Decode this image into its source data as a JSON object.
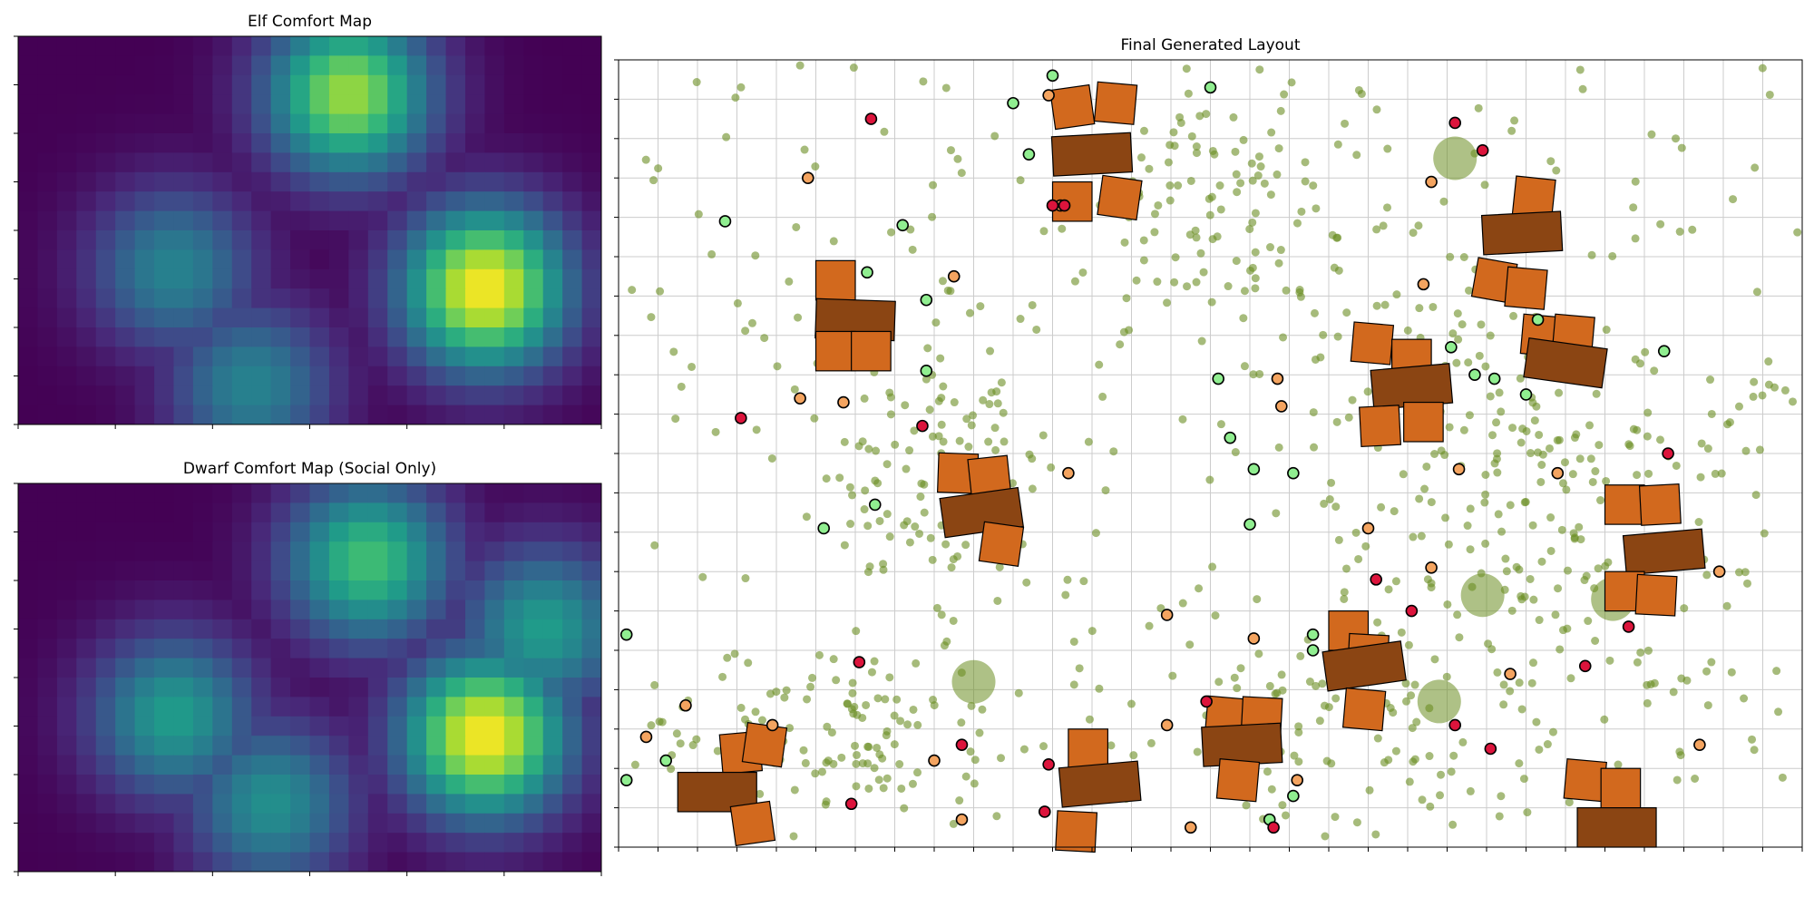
{
  "figure": {
    "background": "#ffffff",
    "titles": {
      "elf": "Elf Comfort Map",
      "dwarf": "Dwarf Comfort Map (Social Only)",
      "layout": "Final Generated Layout"
    }
  },
  "colors": {
    "building": "#d2691e",
    "hall": "#8b4513",
    "tree": "#6b8e23",
    "green_agent": "#90ee90",
    "orange_agent": "#f4a460",
    "red_agent": "#dc143c",
    "grid": "#cccccc"
  },
  "chart_data": [
    {
      "type": "heatmap",
      "title": "Elf Comfort Map",
      "colormap": "viridis",
      "rows": 20,
      "cols": 30,
      "grid_on": false,
      "hotspots": [
        {
          "col": 16.5,
          "row": 2.5,
          "value": 0.85
        },
        {
          "col": 23.5,
          "row": 12.5,
          "value": 1.0
        },
        {
          "col": 7.5,
          "row": 11.5,
          "value": 0.45
        },
        {
          "col": 11.5,
          "row": 17.5,
          "value": 0.45
        }
      ]
    },
    {
      "type": "heatmap",
      "title": "Dwarf Comfort Map (Social Only)",
      "colormap": "viridis",
      "rows": 20,
      "cols": 30,
      "grid_on": false,
      "hotspots": [
        {
          "col": 17.5,
          "row": 3.5,
          "value": 0.7
        },
        {
          "col": 23.5,
          "row": 12.5,
          "value": 1.0
        },
        {
          "col": 7.5,
          "row": 11.5,
          "value": 0.55
        },
        {
          "col": 12.5,
          "row": 16.0,
          "value": 0.5
        },
        {
          "col": 26.5,
          "row": 7.0,
          "value": 0.55
        }
      ]
    },
    {
      "type": "scatter",
      "title": "Final Generated Layout",
      "grid_on": true,
      "xlim": [
        0,
        30
      ],
      "ylim": [
        0,
        20
      ],
      "trees_count": 900,
      "large_trees": [
        [
          9,
          4.2
        ],
        [
          21.2,
          17.5
        ],
        [
          21.9,
          6.4
        ],
        [
          25.2,
          6.3
        ],
        [
          20.8,
          3.7
        ]
      ],
      "buildings": [
        {
          "x": 11.5,
          "y": 18.8,
          "w": 1.0,
          "h": 1.0,
          "rot": -8
        },
        {
          "x": 12.6,
          "y": 18.9,
          "w": 1.0,
          "h": 1.0,
          "rot": 5
        },
        {
          "x": 12.0,
          "y": 17.6,
          "w": 2.0,
          "h": 1.0,
          "rot": -3,
          "hall": true
        },
        {
          "x": 11.5,
          "y": 16.4,
          "w": 1.0,
          "h": 1.0,
          "rot": 0
        },
        {
          "x": 12.7,
          "y": 16.5,
          "w": 1.0,
          "h": 1.0,
          "rot": 8
        },
        {
          "x": 23.2,
          "y": 16.5,
          "w": 1.0,
          "h": 1.0,
          "rot": 6
        },
        {
          "x": 22.9,
          "y": 15.6,
          "w": 2.0,
          "h": 1.0,
          "rot": -3,
          "hall": true
        },
        {
          "x": 22.2,
          "y": 14.4,
          "w": 1.0,
          "h": 1.0,
          "rot": 10
        },
        {
          "x": 23.0,
          "y": 14.2,
          "w": 1.0,
          "h": 1.0,
          "rot": 5
        },
        {
          "x": 23.4,
          "y": 13.0,
          "w": 1.0,
          "h": 1.0,
          "rot": 5
        },
        {
          "x": 24.2,
          "y": 13.0,
          "w": 1.0,
          "h": 1.0,
          "rot": 5
        },
        {
          "x": 24.0,
          "y": 12.3,
          "w": 2.0,
          "h": 1.0,
          "rot": 8,
          "hall": true
        },
        {
          "x": 5.5,
          "y": 14.4,
          "w": 1.0,
          "h": 1.0,
          "rot": 0
        },
        {
          "x": 6.0,
          "y": 13.4,
          "w": 2.0,
          "h": 1.0,
          "rot": 2,
          "hall": true
        },
        {
          "x": 5.5,
          "y": 12.6,
          "w": 1.0,
          "h": 1.0,
          "rot": 0
        },
        {
          "x": 6.4,
          "y": 12.6,
          "w": 1.0,
          "h": 1.0,
          "rot": 0
        },
        {
          "x": 19.1,
          "y": 12.8,
          "w": 1.0,
          "h": 1.0,
          "rot": 5
        },
        {
          "x": 20.1,
          "y": 12.4,
          "w": 1.0,
          "h": 1.0,
          "rot": 0
        },
        {
          "x": 20.1,
          "y": 11.7,
          "w": 2.0,
          "h": 1.0,
          "rot": -5,
          "hall": true
        },
        {
          "x": 19.3,
          "y": 10.7,
          "w": 1.0,
          "h": 1.0,
          "rot": -3
        },
        {
          "x": 20.4,
          "y": 10.8,
          "w": 1.0,
          "h": 1.0,
          "rot": 0
        },
        {
          "x": 8.6,
          "y": 9.5,
          "w": 1.0,
          "h": 1.0,
          "rot": 2
        },
        {
          "x": 9.4,
          "y": 9.4,
          "w": 1.0,
          "h": 1.0,
          "rot": -6
        },
        {
          "x": 9.2,
          "y": 8.5,
          "w": 2.0,
          "h": 1.0,
          "rot": -8,
          "hall": true
        },
        {
          "x": 9.7,
          "y": 7.7,
          "w": 1.0,
          "h": 1.0,
          "rot": 8
        },
        {
          "x": 25.5,
          "y": 8.7,
          "w": 1.0,
          "h": 1.0,
          "rot": 0
        },
        {
          "x": 26.4,
          "y": 8.7,
          "w": 1.0,
          "h": 1.0,
          "rot": -3
        },
        {
          "x": 26.5,
          "y": 7.5,
          "w": 2.0,
          "h": 1.0,
          "rot": -5,
          "hall": true
        },
        {
          "x": 25.5,
          "y": 6.5,
          "w": 1.0,
          "h": 1.0,
          "rot": 0
        },
        {
          "x": 26.3,
          "y": 6.4,
          "w": 1.0,
          "h": 1.0,
          "rot": 3
        },
        {
          "x": 18.5,
          "y": 5.5,
          "w": 1.0,
          "h": 1.0,
          "rot": 0
        },
        {
          "x": 19.0,
          "y": 4.9,
          "w": 1.0,
          "h": 1.0,
          "rot": 3
        },
        {
          "x": 18.9,
          "y": 4.6,
          "w": 2.0,
          "h": 1.0,
          "rot": -8,
          "hall": true
        },
        {
          "x": 18.9,
          "y": 3.5,
          "w": 1.0,
          "h": 1.0,
          "rot": 5
        },
        {
          "x": 15.4,
          "y": 3.3,
          "w": 1.0,
          "h": 1.0,
          "rot": 5
        },
        {
          "x": 16.3,
          "y": 3.3,
          "w": 1.0,
          "h": 1.0,
          "rot": 3
        },
        {
          "x": 15.8,
          "y": 2.6,
          "w": 2.0,
          "h": 1.0,
          "rot": -3,
          "hall": true
        },
        {
          "x": 15.7,
          "y": 1.7,
          "w": 1.0,
          "h": 1.0,
          "rot": 5
        },
        {
          "x": 3.1,
          "y": 2.4,
          "w": 1.0,
          "h": 1.0,
          "rot": -5
        },
        {
          "x": 3.7,
          "y": 2.6,
          "w": 1.0,
          "h": 1.0,
          "rot": 8
        },
        {
          "x": 2.5,
          "y": 1.4,
          "w": 2.0,
          "h": 1.0,
          "rot": 0,
          "hall": true
        },
        {
          "x": 3.4,
          "y": 0.6,
          "w": 1.0,
          "h": 1.0,
          "rot": -8
        },
        {
          "x": 11.9,
          "y": 2.5,
          "w": 1.0,
          "h": 1.0,
          "rot": 0
        },
        {
          "x": 12.2,
          "y": 1.6,
          "w": 2.0,
          "h": 1.0,
          "rot": -5,
          "hall": true
        },
        {
          "x": 11.6,
          "y": 0.4,
          "w": 1.0,
          "h": 1.0,
          "rot": 3
        },
        {
          "x": 24.5,
          "y": 1.7,
          "w": 1.0,
          "h": 1.0,
          "rot": 5
        },
        {
          "x": 25.4,
          "y": 1.5,
          "w": 1.0,
          "h": 1.0,
          "rot": 0
        },
        {
          "x": 25.3,
          "y": 0.5,
          "w": 2.0,
          "h": 1.0,
          "rot": 0,
          "hall": true
        }
      ],
      "agents_green": [
        [
          11,
          19.6
        ],
        [
          15,
          19.3
        ],
        [
          10,
          18.9
        ],
        [
          10.4,
          17.6
        ],
        [
          2.7,
          15.9
        ],
        [
          7.2,
          15.8
        ],
        [
          6.3,
          14.6
        ],
        [
          7.8,
          13.9
        ],
        [
          7.8,
          12.1
        ],
        [
          21.1,
          12.7
        ],
        [
          21.7,
          12.0
        ],
        [
          23.3,
          13.4
        ],
        [
          26.5,
          12.6
        ],
        [
          15.2,
          11.9
        ],
        [
          23.0,
          11.5
        ],
        [
          22.2,
          11.9
        ],
        [
          15.5,
          10.4
        ],
        [
          16.1,
          9.6
        ],
        [
          17.1,
          9.5
        ],
        [
          6.5,
          8.7
        ],
        [
          5.2,
          8.1
        ],
        [
          16,
          8.2
        ],
        [
          0.2,
          5.4
        ],
        [
          17.6,
          5.4
        ],
        [
          17.6,
          5.0
        ],
        [
          1.2,
          2.2
        ],
        [
          0.2,
          1.7
        ],
        [
          17.1,
          1.3
        ],
        [
          16.5,
          0.7
        ]
      ],
      "agents_orange": [
        [
          10.9,
          19.1
        ],
        [
          4.8,
          17.0
        ],
        [
          11.2,
          16.3
        ],
        [
          20.6,
          16.9
        ],
        [
          8.5,
          14.5
        ],
        [
          20.4,
          14.3
        ],
        [
          16.7,
          11.9
        ],
        [
          4.6,
          11.4
        ],
        [
          5.7,
          11.3
        ],
        [
          16.8,
          11.2
        ],
        [
          11.4,
          9.5
        ],
        [
          21.3,
          9.6
        ],
        [
          23.8,
          9.5
        ],
        [
          19.0,
          8.1
        ],
        [
          20.6,
          7.1
        ],
        [
          13.9,
          5.9
        ],
        [
          16.1,
          5.3
        ],
        [
          27.9,
          7.0
        ],
        [
          1.7,
          3.6
        ],
        [
          0.7,
          2.8
        ],
        [
          3.9,
          3.1
        ],
        [
          8.0,
          2.2
        ],
        [
          13.9,
          3.1
        ],
        [
          17.2,
          1.7
        ],
        [
          22.6,
          4.4
        ],
        [
          27.4,
          2.6
        ],
        [
          8.7,
          0.7
        ],
        [
          14.5,
          0.5
        ]
      ],
      "agents_red": [
        [
          6.4,
          18.5
        ],
        [
          21.2,
          18.4
        ],
        [
          21.9,
          17.7
        ],
        [
          11.0,
          16.3
        ],
        [
          11.3,
          16.3
        ],
        [
          3.1,
          10.9
        ],
        [
          7.7,
          10.7
        ],
        [
          26.6,
          10.0
        ],
        [
          19.2,
          6.8
        ],
        [
          20.1,
          6.0
        ],
        [
          25.6,
          5.6
        ],
        [
          24.5,
          4.6
        ],
        [
          6.1,
          4.7
        ],
        [
          14.9,
          3.7
        ],
        [
          21.2,
          3.1
        ],
        [
          8.7,
          2.6
        ],
        [
          22.1,
          2.5
        ],
        [
          10.9,
          2.1
        ],
        [
          5.9,
          1.1
        ],
        [
          10.8,
          0.9
        ],
        [
          16.6,
          0.5
        ]
      ]
    }
  ]
}
